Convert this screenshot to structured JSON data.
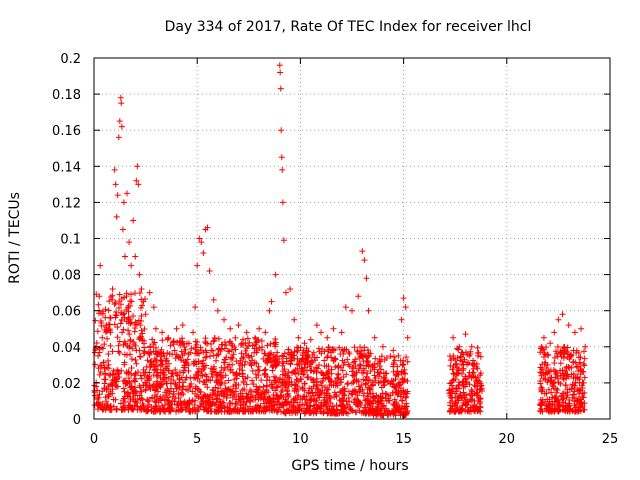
{
  "chart_data": {
    "type": "scatter",
    "title": "Day 334 of 2017, Rate Of TEC Index for receiver lhcl",
    "xlabel": "GPS time / hours",
    "ylabel": "ROTI / TECUs",
    "xlim": [
      0,
      25
    ],
    "ylim": [
      0,
      0.2
    ],
    "xticks": [
      0,
      5,
      10,
      15,
      20,
      25
    ],
    "xtick_labels": [
      "0",
      "5",
      "10",
      "15",
      "20",
      "25"
    ],
    "yticks": [
      0,
      0.02,
      0.04,
      0.06,
      0.08,
      0.1,
      0.12,
      0.14,
      0.16,
      0.18,
      0.2
    ],
    "ytick_labels": [
      "0",
      "0.02",
      "0.04",
      "0.06",
      "0.08",
      "0.1",
      "0.12",
      "0.14",
      "0.16",
      "0.18",
      "0.2"
    ],
    "grid": true,
    "marker": "+",
    "color": "#ff0000",
    "series": [
      {
        "name": "ROTI",
        "points": [
          [
            0.1,
            0.018
          ],
          [
            0.2,
            0.035
          ],
          [
            0.25,
            0.06
          ],
          [
            0.3,
            0.085
          ],
          [
            0.4,
            0.045
          ],
          [
            0.5,
            0.022
          ],
          [
            0.6,
            0.052
          ],
          [
            0.7,
            0.03
          ],
          [
            0.8,
            0.048
          ],
          [
            0.9,
            0.072
          ],
          [
            1.0,
            0.138
          ],
          [
            1.05,
            0.13
          ],
          [
            1.1,
            0.112
          ],
          [
            1.15,
            0.124
          ],
          [
            1.2,
            0.156
          ],
          [
            1.25,
            0.165
          ],
          [
            1.3,
            0.178
          ],
          [
            1.32,
            0.175
          ],
          [
            1.35,
            0.162
          ],
          [
            1.4,
            0.105
          ],
          [
            1.45,
            0.12
          ],
          [
            1.5,
            0.09
          ],
          [
            1.6,
            0.125
          ],
          [
            1.7,
            0.098
          ],
          [
            1.8,
            0.085
          ],
          [
            1.9,
            0.11
          ],
          [
            2.0,
            0.09
          ],
          [
            2.05,
            0.132
          ],
          [
            2.1,
            0.14
          ],
          [
            2.15,
            0.13
          ],
          [
            2.2,
            0.08
          ],
          [
            2.3,
            0.072
          ],
          [
            2.4,
            0.065
          ],
          [
            2.5,
            0.058
          ],
          [
            2.7,
            0.07
          ],
          [
            2.9,
            0.062
          ],
          [
            3.0,
            0.05
          ],
          [
            3.3,
            0.048
          ],
          [
            3.6,
            0.045
          ],
          [
            4.0,
            0.05
          ],
          [
            4.3,
            0.052
          ],
          [
            4.6,
            0.042
          ],
          [
            4.8,
            0.048
          ],
          [
            4.9,
            0.062
          ],
          [
            5.0,
            0.085
          ],
          [
            5.1,
            0.1
          ],
          [
            5.2,
            0.098
          ],
          [
            5.3,
            0.092
          ],
          [
            5.4,
            0.105
          ],
          [
            5.5,
            0.106
          ],
          [
            5.6,
            0.082
          ],
          [
            5.8,
            0.066
          ],
          [
            6.0,
            0.06
          ],
          [
            6.3,
            0.055
          ],
          [
            6.6,
            0.05
          ],
          [
            7.0,
            0.052
          ],
          [
            7.4,
            0.048
          ],
          [
            7.8,
            0.045
          ],
          [
            8.0,
            0.05
          ],
          [
            8.3,
            0.048
          ],
          [
            8.5,
            0.06
          ],
          [
            8.6,
            0.065
          ],
          [
            8.8,
            0.08
          ],
          [
            9.0,
            0.196
          ],
          [
            9.02,
            0.192
          ],
          [
            9.05,
            0.183
          ],
          [
            9.07,
            0.16
          ],
          [
            9.1,
            0.145
          ],
          [
            9.12,
            0.138
          ],
          [
            9.15,
            0.12
          ],
          [
            9.2,
            0.099
          ],
          [
            9.3,
            0.07
          ],
          [
            9.5,
            0.072
          ],
          [
            9.7,
            0.055
          ],
          [
            9.9,
            0.045
          ],
          [
            10.2,
            0.042
          ],
          [
            10.5,
            0.044
          ],
          [
            10.8,
            0.052
          ],
          [
            11.0,
            0.048
          ],
          [
            11.3,
            0.045
          ],
          [
            11.6,
            0.05
          ],
          [
            12.0,
            0.048
          ],
          [
            12.2,
            0.062
          ],
          [
            12.5,
            0.06
          ],
          [
            12.8,
            0.068
          ],
          [
            13.0,
            0.093
          ],
          [
            13.1,
            0.088
          ],
          [
            13.2,
            0.078
          ],
          [
            13.3,
            0.06
          ],
          [
            13.6,
            0.045
          ],
          [
            14.0,
            0.04
          ],
          [
            14.5,
            0.038
          ],
          [
            14.9,
            0.055
          ],
          [
            15.0,
            0.067
          ],
          [
            15.1,
            0.062
          ],
          [
            15.2,
            0.045
          ],
          [
            17.4,
            0.045
          ],
          [
            17.7,
            0.04
          ],
          [
            18.0,
            0.047
          ],
          [
            18.3,
            0.04
          ],
          [
            18.6,
            0.035
          ],
          [
            21.8,
            0.045
          ],
          [
            22.1,
            0.042
          ],
          [
            22.3,
            0.048
          ],
          [
            22.5,
            0.055
          ],
          [
            22.7,
            0.058
          ],
          [
            23.0,
            0.052
          ],
          [
            23.3,
            0.048
          ],
          [
            23.6,
            0.05
          ],
          [
            23.8,
            0.04
          ]
        ]
      }
    ],
    "density_bands": [
      {
        "x_range": [
          0.0,
          2.5
        ],
        "y_range": [
          0.005,
          0.07
        ]
      },
      {
        "x_range": [
          2.5,
          9.0
        ],
        "y_range": [
          0.004,
          0.045
        ]
      },
      {
        "x_range": [
          9.0,
          13.5
        ],
        "y_range": [
          0.003,
          0.04
        ]
      },
      {
        "x_range": [
          13.5,
          15.2
        ],
        "y_range": [
          0.002,
          0.035
        ]
      },
      {
        "x_range": [
          17.2,
          18.8
        ],
        "y_range": [
          0.004,
          0.04
        ]
      },
      {
        "x_range": [
          21.6,
          23.8
        ],
        "y_range": [
          0.004,
          0.04
        ]
      }
    ]
  }
}
